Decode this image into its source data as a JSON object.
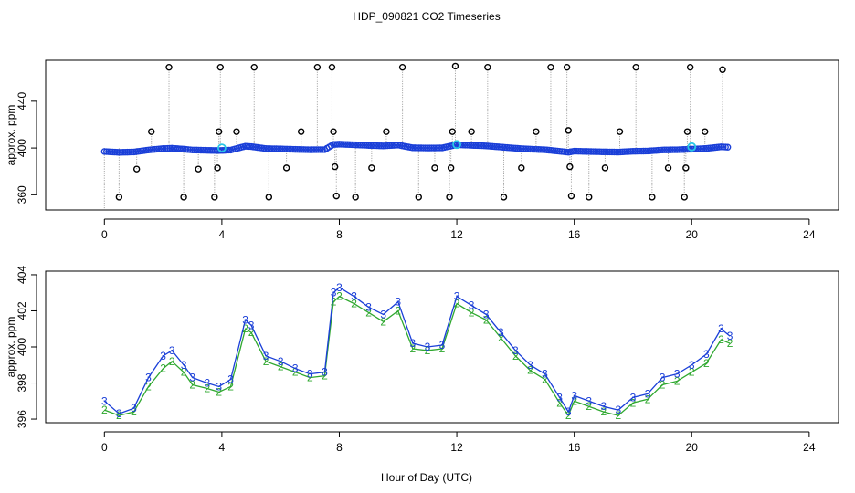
{
  "chart_data": [
    {
      "type": "scatter",
      "title": "HDP_090821  CO2 Timeseries",
      "xlabel": "",
      "ylabel": "approx. ppm",
      "xlim": [
        -2,
        25
      ],
      "ylim": [
        347,
        475
      ],
      "xticks": [
        0,
        4,
        8,
        12,
        16,
        20,
        24
      ],
      "yticks": [
        360,
        400,
        440
      ],
      "colors": {
        "outlier": "#000000",
        "main": "#1a3fd8",
        "highlight": "#29c7e6",
        "droplines": "#9a9a9a"
      },
      "outliers": [
        {
          "x": 0.5,
          "y": 358
        },
        {
          "x": 1.1,
          "y": 382
        },
        {
          "x": 1.6,
          "y": 414
        },
        {
          "x": 2.2,
          "y": 469
        },
        {
          "x": 2.7,
          "y": 358
        },
        {
          "x": 3.2,
          "y": 382
        },
        {
          "x": 3.75,
          "y": 358
        },
        {
          "x": 3.85,
          "y": 383
        },
        {
          "x": 3.9,
          "y": 414
        },
        {
          "x": 3.95,
          "y": 469
        },
        {
          "x": 4.5,
          "y": 414
        },
        {
          "x": 5.1,
          "y": 469
        },
        {
          "x": 5.6,
          "y": 358
        },
        {
          "x": 6.2,
          "y": 383
        },
        {
          "x": 6.7,
          "y": 414
        },
        {
          "x": 7.25,
          "y": 469
        },
        {
          "x": 7.75,
          "y": 469
        },
        {
          "x": 7.8,
          "y": 414
        },
        {
          "x": 7.85,
          "y": 384
        },
        {
          "x": 7.9,
          "y": 359
        },
        {
          "x": 8.55,
          "y": 358
        },
        {
          "x": 9.1,
          "y": 383
        },
        {
          "x": 9.6,
          "y": 414
        },
        {
          "x": 10.15,
          "y": 469
        },
        {
          "x": 10.7,
          "y": 358
        },
        {
          "x": 11.25,
          "y": 383
        },
        {
          "x": 11.75,
          "y": 358
        },
        {
          "x": 11.8,
          "y": 383
        },
        {
          "x": 11.85,
          "y": 414
        },
        {
          "x": 11.95,
          "y": 470
        },
        {
          "x": 12.5,
          "y": 414
        },
        {
          "x": 13.05,
          "y": 469
        },
        {
          "x": 13.6,
          "y": 358
        },
        {
          "x": 14.2,
          "y": 383
        },
        {
          "x": 14.7,
          "y": 414
        },
        {
          "x": 15.2,
          "y": 469
        },
        {
          "x": 15.75,
          "y": 469
        },
        {
          "x": 15.8,
          "y": 415
        },
        {
          "x": 15.85,
          "y": 384
        },
        {
          "x": 15.9,
          "y": 359
        },
        {
          "x": 16.5,
          "y": 358
        },
        {
          "x": 17.05,
          "y": 383
        },
        {
          "x": 17.55,
          "y": 414
        },
        {
          "x": 18.1,
          "y": 469
        },
        {
          "x": 18.65,
          "y": 358
        },
        {
          "x": 19.2,
          "y": 383
        },
        {
          "x": 19.75,
          "y": 358
        },
        {
          "x": 19.8,
          "y": 383
        },
        {
          "x": 19.85,
          "y": 414
        },
        {
          "x": 19.95,
          "y": 469
        },
        {
          "x": 20.45,
          "y": 414
        },
        {
          "x": 21.05,
          "y": 467
        }
      ],
      "highlights": [
        {
          "x": 4.0,
          "y": 400
        },
        {
          "x": 12.0,
          "y": 403
        },
        {
          "x": 20.0,
          "y": 401
        }
      ]
    },
    {
      "type": "line",
      "title": "",
      "xlabel": "Hour of Day (UTC)",
      "ylabel": "approx. ppm",
      "xlim": [
        -2,
        25
      ],
      "ylim": [
        395.8,
        404.2
      ],
      "xticks": [
        0,
        4,
        8,
        12,
        16,
        20,
        24
      ],
      "yticks": [
        396,
        398,
        400,
        402,
        404
      ],
      "series": [
        {
          "name": "3",
          "color": "#1a3fd8",
          "x": [
            0,
            0.5,
            1,
            1.5,
            2,
            2.3,
            2.7,
            3,
            3.5,
            3.9,
            4.3,
            4.8,
            5,
            5.5,
            6,
            6.5,
            7,
            7.5,
            7.8,
            8,
            8.5,
            9,
            9.5,
            10,
            10.5,
            11,
            11.5,
            12,
            12.5,
            13,
            13.5,
            14,
            14.5,
            15,
            15.5,
            15.8,
            16,
            16.5,
            17,
            17.5,
            18,
            18.5,
            19,
            19.5,
            20,
            20.5,
            21,
            21.3
          ],
          "y": [
            397,
            396.3,
            396.6,
            398.3,
            399.5,
            399.8,
            399,
            398.3,
            398,
            397.8,
            398.2,
            401.5,
            401.2,
            399.5,
            399.2,
            398.8,
            398.5,
            398.6,
            403,
            403.3,
            402.8,
            402.2,
            401.8,
            402.5,
            400.2,
            400,
            400.1,
            402.8,
            402.3,
            401.8,
            400.8,
            399.8,
            399,
            398.5,
            397.2,
            396.4,
            397.3,
            397,
            396.7,
            396.5,
            397.2,
            397.4,
            398.3,
            398.5,
            399,
            399.6,
            401,
            400.6
          ]
        },
        {
          "name": "2",
          "color": "#2fa82f",
          "x": [
            0,
            0.5,
            1,
            1.5,
            2,
            2.3,
            2.7,
            3,
            3.5,
            3.9,
            4.3,
            4.8,
            5,
            5.5,
            6,
            6.5,
            7,
            7.5,
            7.8,
            8,
            8.5,
            9,
            9.5,
            10,
            10.5,
            11,
            11.5,
            12,
            12.5,
            13,
            13.5,
            14,
            14.5,
            15,
            15.5,
            15.8,
            16,
            16.5,
            17,
            17.5,
            18,
            18.5,
            19,
            19.5,
            20,
            20.5,
            21,
            21.3
          ],
          "y": [
            396.5,
            396.2,
            396.4,
            397.8,
            398.8,
            399.2,
            398.6,
            397.9,
            397.7,
            397.5,
            397.8,
            401,
            400.8,
            399.2,
            398.9,
            398.6,
            398.3,
            398.4,
            402.5,
            402.8,
            402.4,
            401.9,
            401.4,
            402,
            399.9,
            399.8,
            399.9,
            402.4,
            401.9,
            401.5,
            400.5,
            399.5,
            398.7,
            398.2,
            396.9,
            396.2,
            397,
            396.7,
            396.4,
            396.2,
            396.9,
            397.1,
            397.9,
            398.1,
            398.6,
            399.1,
            400.4,
            400.2
          ]
        }
      ]
    }
  ]
}
